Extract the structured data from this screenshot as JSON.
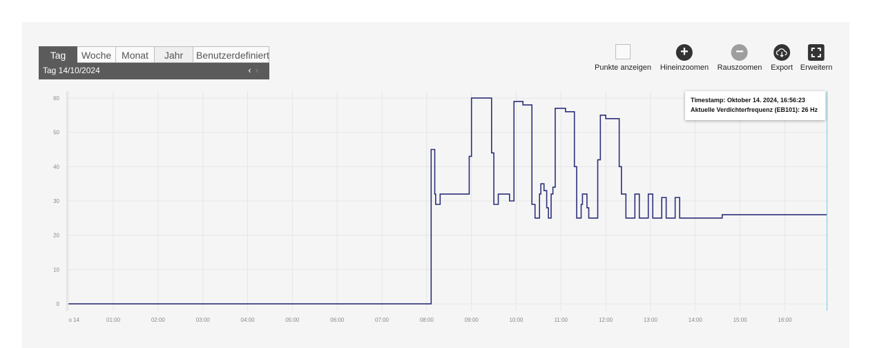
{
  "period_selector": {
    "tabs": [
      "Tag",
      "Woche",
      "Monat",
      "Jahr",
      "Benutzerdefiniert"
    ],
    "active_tab": "Tag",
    "range_label": "Tag  14/10/2024"
  },
  "toolbar": {
    "points_label": "Punkte anzeigen",
    "zoom_in_label": "Hineinzoomen",
    "zoom_out_label": "Rauszoomen",
    "export_label": "Export",
    "expand_label": "Erweitern"
  },
  "tooltip": {
    "line1": "Timestamp: Oktober 14. 2024, 16:56:23",
    "line2": "Aktuelle Verdichterfrequenz (EB101): 26 Hz"
  },
  "colors": {
    "line": "#2b2f7a",
    "cursor": "#7fd3e6",
    "grid": "#e6e6e6"
  },
  "chart_data": {
    "type": "line",
    "title": "",
    "xlabel": "",
    "ylabel": "",
    "x_unit": "hours since 00:00 on 14/10/2024",
    "x_ticks": [
      "o 14",
      "01:00",
      "02:00",
      "03:00",
      "04:00",
      "05:00",
      "06:00",
      "07:00",
      "08:00",
      "09:00",
      "10:00",
      "11:00",
      "12:00",
      "13:00",
      "14:00",
      "15:00",
      "16:00"
    ],
    "xlim": [
      -0.05,
      16.95
    ],
    "y_ticks": [
      0,
      10,
      20,
      30,
      40,
      50,
      60
    ],
    "ylim": [
      -2,
      62
    ],
    "grid": true,
    "series": [
      {
        "name": "Aktuelle Verdichterfrequenz (EB101)",
        "step": true,
        "points": [
          [
            0.0,
            0
          ],
          [
            8.1,
            0
          ],
          [
            8.1,
            45
          ],
          [
            8.18,
            45
          ],
          [
            8.18,
            32
          ],
          [
            8.2,
            32
          ],
          [
            8.2,
            29
          ],
          [
            8.3,
            29
          ],
          [
            8.3,
            32
          ],
          [
            8.95,
            32
          ],
          [
            8.95,
            43
          ],
          [
            9.0,
            43
          ],
          [
            9.0,
            60
          ],
          [
            9.45,
            60
          ],
          [
            9.45,
            44
          ],
          [
            9.5,
            44
          ],
          [
            9.5,
            29
          ],
          [
            9.6,
            29
          ],
          [
            9.6,
            32
          ],
          [
            9.85,
            32
          ],
          [
            9.85,
            30
          ],
          [
            9.95,
            30
          ],
          [
            9.95,
            59
          ],
          [
            10.15,
            59
          ],
          [
            10.15,
            58
          ],
          [
            10.35,
            58
          ],
          [
            10.35,
            29
          ],
          [
            10.42,
            29
          ],
          [
            10.42,
            25
          ],
          [
            10.52,
            25
          ],
          [
            10.52,
            32
          ],
          [
            10.55,
            32
          ],
          [
            10.55,
            35
          ],
          [
            10.62,
            35
          ],
          [
            10.62,
            33
          ],
          [
            10.68,
            33
          ],
          [
            10.68,
            28
          ],
          [
            10.72,
            28
          ],
          [
            10.72,
            25
          ],
          [
            10.78,
            25
          ],
          [
            10.78,
            32
          ],
          [
            10.82,
            32
          ],
          [
            10.82,
            34
          ],
          [
            10.87,
            34
          ],
          [
            10.87,
            57
          ],
          [
            11.1,
            57
          ],
          [
            11.1,
            56
          ],
          [
            11.3,
            56
          ],
          [
            11.3,
            40
          ],
          [
            11.35,
            40
          ],
          [
            11.35,
            25
          ],
          [
            11.45,
            25
          ],
          [
            11.45,
            29
          ],
          [
            11.48,
            29
          ],
          [
            11.48,
            32
          ],
          [
            11.58,
            32
          ],
          [
            11.58,
            28
          ],
          [
            11.62,
            28
          ],
          [
            11.62,
            25
          ],
          [
            11.82,
            25
          ],
          [
            11.82,
            42
          ],
          [
            11.88,
            42
          ],
          [
            11.88,
            55
          ],
          [
            12.0,
            55
          ],
          [
            12.0,
            54
          ],
          [
            12.3,
            54
          ],
          [
            12.3,
            40
          ],
          [
            12.35,
            40
          ],
          [
            12.35,
            32
          ],
          [
            12.45,
            32
          ],
          [
            12.45,
            25
          ],
          [
            12.65,
            25
          ],
          [
            12.65,
            32
          ],
          [
            12.75,
            32
          ],
          [
            12.75,
            25
          ],
          [
            12.95,
            25
          ],
          [
            12.95,
            32
          ],
          [
            13.05,
            32
          ],
          [
            13.05,
            25
          ],
          [
            13.25,
            25
          ],
          [
            13.25,
            31
          ],
          [
            13.35,
            31
          ],
          [
            13.35,
            25
          ],
          [
            13.55,
            25
          ],
          [
            13.55,
            31
          ],
          [
            13.65,
            31
          ],
          [
            13.65,
            25
          ],
          [
            14.6,
            25
          ],
          [
            14.6,
            26
          ],
          [
            16.95,
            26
          ]
        ]
      }
    ]
  }
}
